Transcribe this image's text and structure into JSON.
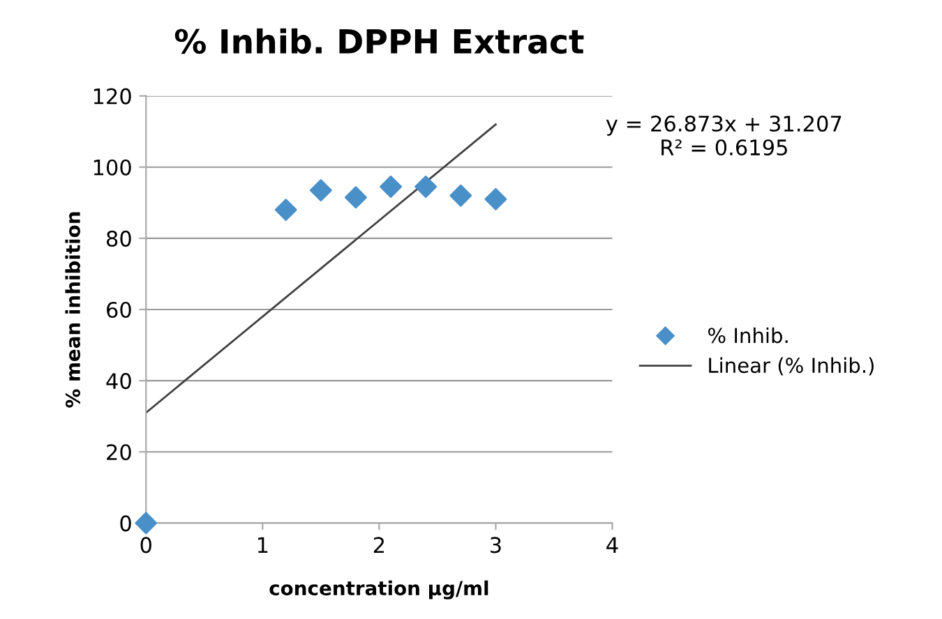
{
  "chart_data": {
    "type": "scatter",
    "title": "% Inhib. DPPH Extract",
    "xlabel": "concentration μg/ml",
    "ylabel": "% mean inhibition",
    "annotations": [
      "y = 26.873x + 31.207\nR² = 0.6195"
    ],
    "series": [
      {
        "name": "% Inhib.",
        "color": "#4a90c8",
        "marker": "diamond",
        "x": [
          0,
          1.2,
          1.5,
          1.8,
          2.1,
          2.4,
          2.7,
          3.0
        ],
        "values": [
          0,
          88,
          93.5,
          91.5,
          94.5,
          94.5,
          92,
          91
        ]
      },
      {
        "name": "Linear (% Inhib.)",
        "type": "line",
        "color": "#404040",
        "marker": "none",
        "x": [
          0,
          3
        ],
        "values": [
          31,
          112
        ]
      }
    ],
    "xlim": [
      0,
      4
    ],
    "xticks": [
      0,
      1,
      2,
      3,
      4
    ],
    "ylim": [
      0,
      120
    ],
    "yticks": [
      0,
      20,
      40,
      60,
      80,
      100,
      120
    ],
    "grid": "y",
    "legend": "right"
  }
}
